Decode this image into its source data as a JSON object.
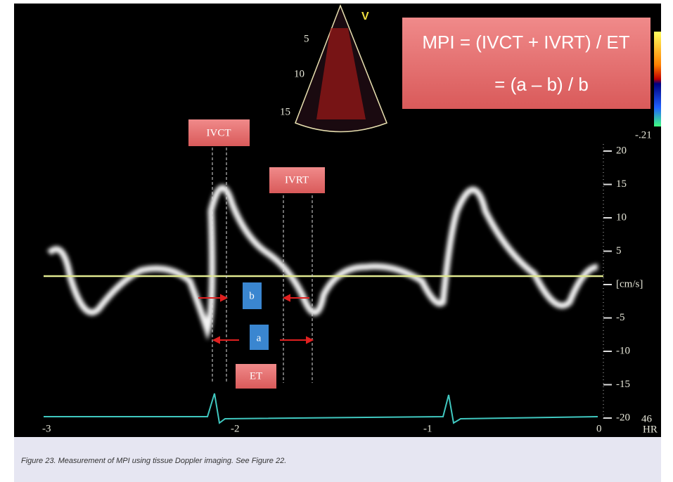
{
  "figure": {
    "formula": {
      "line1": "MPI = (IVCT + IVRT) / ET",
      "line2": "= (a – b) / b"
    },
    "labels": {
      "ivct": "IVCT",
      "ivrt": "IVRT",
      "a": "a",
      "b": "b",
      "et": "ET"
    },
    "sector": {
      "depths": [
        "5",
        "10",
        "15"
      ],
      "mode": "V"
    },
    "color_bar": {
      "min": "-.21"
    },
    "velocity_scale": {
      "ticks": [
        "20",
        "15",
        "10",
        "5",
        "[cm/s]",
        "-5",
        "-10",
        "-15",
        "-20"
      ]
    },
    "time_scale": {
      "ticks": [
        "-3",
        "-2",
        "-1",
        "0"
      ]
    },
    "heart_rate": {
      "value": "46",
      "unit": "HR"
    },
    "caption": "Figure 23. Measurement of MPI using tissue Doppler imaging.  See Figure 22."
  }
}
